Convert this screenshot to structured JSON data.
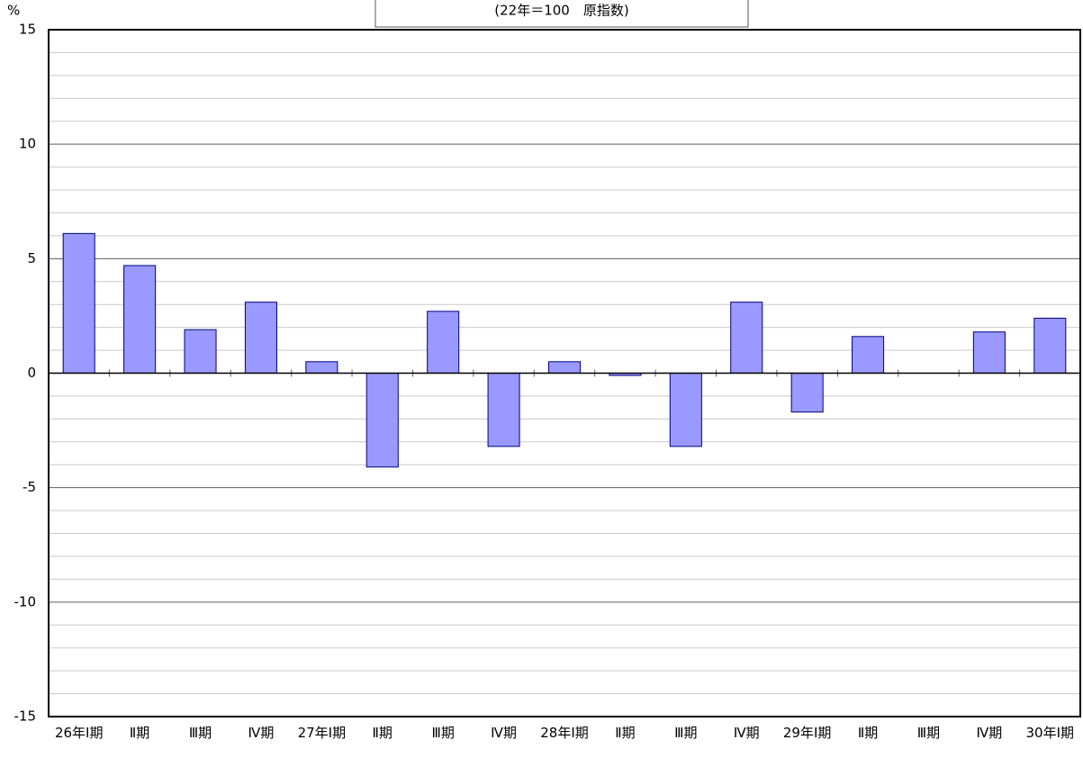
{
  "chart_data": {
    "type": "bar",
    "subtitle": "(22年＝100　原指数)",
    "y_label": "%",
    "categories": [
      "26年Ⅰ期",
      "Ⅱ期",
      "Ⅲ期",
      "Ⅳ期",
      "27年Ⅰ期",
      "Ⅱ期",
      "Ⅲ期",
      "Ⅳ期",
      "28年Ⅰ期",
      "Ⅱ期",
      "Ⅲ期",
      "Ⅳ期",
      "29年Ⅰ期",
      "Ⅱ期",
      "Ⅲ期",
      "Ⅳ期",
      "30年Ⅰ期"
    ],
    "values": [
      6.1,
      4.7,
      1.9,
      3.1,
      0.5,
      -4.1,
      2.7,
      -3.2,
      0.5,
      -0.1,
      -3.2,
      3.1,
      -1.7,
      1.6,
      0,
      1.8,
      2.4
    ],
    "color": "#9999ff",
    "ylim": [
      -15,
      15
    ],
    "yticks": [
      -15,
      -10,
      -5,
      0,
      5,
      10,
      15
    ],
    "minor_grid_step": 1,
    "grid": true
  }
}
